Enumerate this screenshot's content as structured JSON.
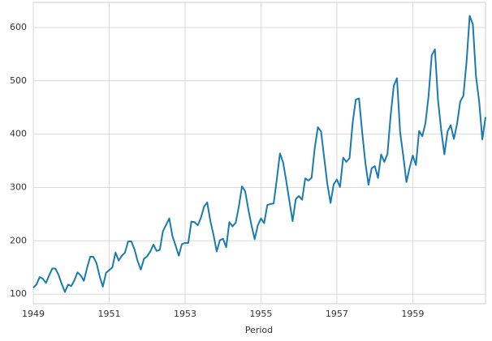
{
  "chart_data": {
    "type": "line",
    "x_label": "Period",
    "x": [
      1949,
      1949.0833,
      1949.1667,
      1949.25,
      1949.3333,
      1949.4167,
      1949.5,
      1949.5833,
      1949.6667,
      1949.75,
      1949.8333,
      1949.9167,
      1950,
      1950.0833,
      1950.1667,
      1950.25,
      1950.3333,
      1950.4167,
      1950.5,
      1950.5833,
      1950.6667,
      1950.75,
      1950.8333,
      1950.9167,
      1951,
      1951.0833,
      1951.1667,
      1951.25,
      1951.3333,
      1951.4167,
      1951.5,
      1951.5833,
      1951.6667,
      1951.75,
      1951.8333,
      1951.9167,
      1952,
      1952.0833,
      1952.1667,
      1952.25,
      1952.3333,
      1952.4167,
      1952.5,
      1952.5833,
      1952.6667,
      1952.75,
      1952.8333,
      1952.9167,
      1953,
      1953.0833,
      1953.1667,
      1953.25,
      1953.3333,
      1953.4167,
      1953.5,
      1953.5833,
      1953.6667,
      1953.75,
      1953.8333,
      1953.9167,
      1954,
      1954.0833,
      1954.1667,
      1954.25,
      1954.3333,
      1954.4167,
      1954.5,
      1954.5833,
      1954.6667,
      1954.75,
      1954.8333,
      1954.9167,
      1955,
      1955.0833,
      1955.1667,
      1955.25,
      1955.3333,
      1955.4167,
      1955.5,
      1955.5833,
      1955.6667,
      1955.75,
      1955.8333,
      1955.9167,
      1956,
      1956.0833,
      1956.1667,
      1956.25,
      1956.3333,
      1956.4167,
      1956.5,
      1956.5833,
      1956.6667,
      1956.75,
      1956.8333,
      1956.9167,
      1957,
      1957.0833,
      1957.1667,
      1957.25,
      1957.3333,
      1957.4167,
      1957.5,
      1957.5833,
      1957.6667,
      1957.75,
      1957.8333,
      1957.9167,
      1958,
      1958.0833,
      1958.1667,
      1958.25,
      1958.3333,
      1958.4167,
      1958.5,
      1958.5833,
      1958.6667,
      1958.75,
      1958.8333,
      1958.9167,
      1959,
      1959.0833,
      1959.1667,
      1959.25,
      1959.3333,
      1959.4167,
      1959.5,
      1959.5833,
      1959.6667,
      1959.75,
      1959.8333,
      1959.9167,
      1960,
      1960.0833,
      1960.1667,
      1960.25,
      1960.3333,
      1960.4167,
      1960.5,
      1960.5833,
      1960.6667,
      1960.75,
      1960.8333,
      1960.9167
    ],
    "values": [
      112,
      118,
      132,
      129,
      121,
      135,
      148,
      148,
      136,
      119,
      104,
      118,
      115,
      126,
      141,
      135,
      125,
      149,
      170,
      170,
      158,
      133,
      114,
      140,
      145,
      150,
      178,
      163,
      172,
      178,
      199,
      199,
      184,
      162,
      146,
      166,
      171,
      180,
      193,
      181,
      183,
      218,
      230,
      242,
      209,
      191,
      172,
      194,
      196,
      196,
      236,
      235,
      229,
      243,
      264,
      272,
      237,
      211,
      180,
      201,
      204,
      188,
      235,
      227,
      234,
      264,
      302,
      293,
      259,
      229,
      203,
      229,
      242,
      233,
      267,
      269,
      270,
      315,
      364,
      347,
      312,
      274,
      237,
      278,
      284,
      277,
      317,
      313,
      318,
      374,
      413,
      405,
      355,
      306,
      271,
      306,
      315,
      301,
      356,
      348,
      355,
      422,
      465,
      467,
      404,
      347,
      305,
      336,
      340,
      318,
      362,
      348,
      363,
      435,
      491,
      505,
      404,
      359,
      310,
      337,
      360,
      342,
      406,
      396,
      420,
      472,
      548,
      559,
      463,
      407,
      362,
      405,
      417,
      391,
      419,
      461,
      472,
      535,
      622,
      606,
      508,
      461,
      390,
      432
    ],
    "color": "#1a7bb0",
    "xlim": [
      1949,
      1960.9167
    ],
    "xticks": [
      1949,
      1951,
      1953,
      1955,
      1957,
      1959
    ],
    "ylim": [
      82,
      647
    ],
    "yticks": [
      100,
      200,
      300,
      400,
      500,
      600
    ],
    "grid": true
  }
}
